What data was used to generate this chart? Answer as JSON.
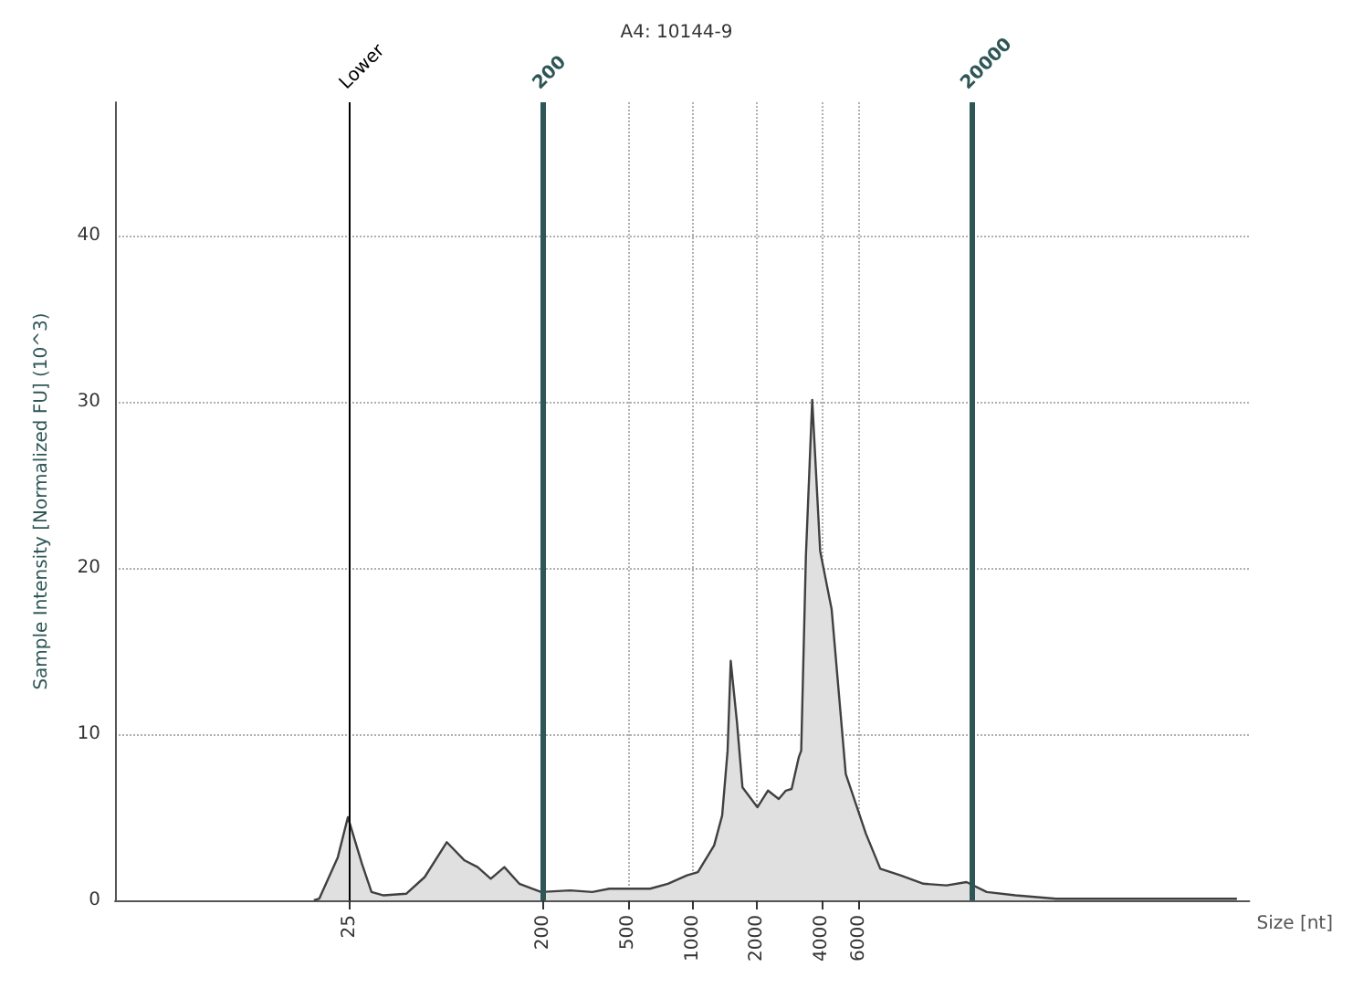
{
  "chart_data": {
    "type": "area",
    "title": "A4: 10144-9",
    "xlabel": "Size [nt]",
    "ylabel": "Sample Intensity [Normalized FU] (10^3)",
    "x": [
      17,
      18,
      22,
      24.5,
      28.5,
      31.6,
      36,
      46,
      56,
      71,
      86,
      99,
      114,
      132,
      155,
      196,
      268,
      340,
      409,
      633,
      767,
      942,
      1059,
      1261,
      1375,
      1458,
      1508,
      1613,
      1711,
      2009,
      2250,
      2528,
      2731,
      2904,
      3135,
      3219,
      3386,
      3624,
      3948,
      4467,
      5200,
      6460,
      7540,
      9370,
      12000,
      15380,
      19070,
      23700,
      32300,
      50000,
      105000,
      150000,
      265000,
      350000
    ],
    "series": [
      {
        "color": "#404040",
        "values": [
          0,
          0.1,
          2.6,
          5.0,
          2.2,
          0.5,
          0.3,
          0.4,
          1.4,
          3.5,
          2.4,
          2.0,
          1.3,
          2.0,
          1.0,
          0.5,
          0.6,
          0.5,
          0.7,
          0.7,
          1.0,
          1.5,
          1.7,
          3.3,
          5.1,
          9.0,
          14.4,
          10.7,
          6.8,
          5.6,
          6.6,
          6.1,
          6.6,
          6.7,
          8.6,
          9.0,
          20.7,
          30.1,
          21.0,
          17.5,
          7.6,
          4.0,
          1.9,
          1.5,
          1.0,
          0.9,
          1.1,
          0.5,
          0.3,
          0.1,
          0.1,
          0.1,
          0.1,
          0.1
        ]
      }
    ],
    "log": "x",
    "xlim": [
      2,
      400000
    ],
    "xticks": [
      25,
      200,
      500,
      1000,
      2000,
      4000,
      6000
    ],
    "ylim": [
      0,
      48
    ],
    "yticks": [
      0,
      10,
      20,
      30,
      40
    ],
    "ref_lines": [
      {
        "axis": "x",
        "value": 25,
        "label": "Lower",
        "color": "#000000"
      },
      {
        "axis": "x",
        "value": 200,
        "label": "200",
        "color": "#2f5656"
      },
      {
        "axis": "x",
        "value": 20000,
        "label": "20000",
        "color": "#2f5656"
      }
    ],
    "grid": true
  }
}
